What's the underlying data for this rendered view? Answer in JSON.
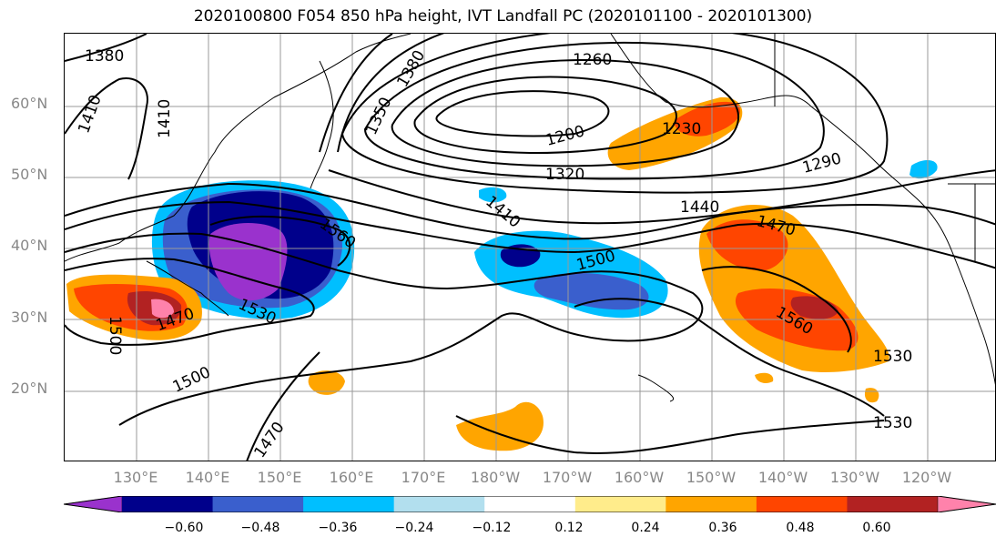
{
  "title": "2020100800 F054 850 hPa height, IVT Landfall PC (2020101100 - 2020101300)",
  "lat_labels": [
    "60°N",
    "50°N",
    "40°N",
    "30°N",
    "20°N"
  ],
  "lon_labels": [
    "130°E",
    "140°E",
    "150°E",
    "160°E",
    "170°E",
    "180°W",
    "170°W",
    "160°W",
    "150°W",
    "140°W",
    "130°W",
    "120°W"
  ],
  "contour_labels": [
    "1380",
    "1380",
    "1410",
    "1410",
    "1350",
    "1260",
    "1200",
    "1230",
    "1320",
    "1290",
    "1410",
    "1440",
    "1470",
    "1500",
    "1560",
    "1530",
    "1470",
    "1500",
    "1560",
    "1530",
    "1500",
    "1470",
    "1530"
  ],
  "colorbar": {
    "colors": [
      "#9a32cd",
      "#00008b",
      "#3a5fcd",
      "#00bfff",
      "#b2dfee",
      "#ffffff",
      "#ffec8b",
      "#ffa500",
      "#ff4500",
      "#b22222",
      "#ff82ab"
    ],
    "ticks": [
      "−0.60",
      "−0.48",
      "−0.36",
      "−0.24",
      "−0.12",
      "0.12",
      "0.24",
      "0.36",
      "0.48",
      "0.60"
    ]
  }
}
